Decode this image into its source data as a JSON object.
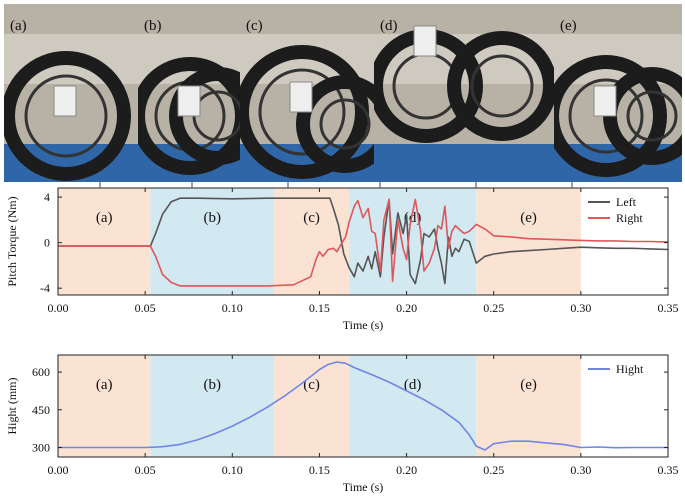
{
  "photos": {
    "labels": [
      "(a)",
      "(b)",
      "(c)",
      "(d)",
      "(e)"
    ],
    "floor_color": "#2f66a8",
    "wall_color": "#b8b2a6",
    "wheel_color": "#1c1c1c"
  },
  "colors": {
    "phase_orange": "#fbe3d4",
    "phase_blue": "#d3e9f1",
    "left": "#555555",
    "right": "#e0565a",
    "hight": "#6f85e8"
  },
  "chart_data": [
    {
      "type": "line",
      "ylabel": "Pitch Torque (Nm)",
      "xlabel": "Time (s)",
      "xlim": [
        0.0,
        0.35
      ],
      "ylim": [
        -4.6,
        4.8
      ],
      "xticks": [
        "0.00",
        "0.05",
        "0.10",
        "0.15",
        "0.20",
        "0.25",
        "0.30",
        "0.35"
      ],
      "yticks": [
        "4",
        "0",
        "-4"
      ],
      "ytick_values": [
        4,
        0,
        -4
      ],
      "legend_position": "top-right",
      "phases": [
        {
          "label": "(a)",
          "start": 0.0,
          "end": 0.053,
          "color": "orange"
        },
        {
          "label": "(b)",
          "start": 0.053,
          "end": 0.124,
          "color": "blue"
        },
        {
          "label": "(c)",
          "start": 0.124,
          "end": 0.167,
          "color": "orange"
        },
        {
          "label": "(d)",
          "start": 0.167,
          "end": 0.24,
          "color": "blue"
        },
        {
          "label": "(e)",
          "start": 0.24,
          "end": 0.3,
          "color": "orange"
        }
      ],
      "series": [
        {
          "name": "Left",
          "x": [
            0.0,
            0.053,
            0.056,
            0.06,
            0.065,
            0.07,
            0.08,
            0.1,
            0.12,
            0.14,
            0.156,
            0.158,
            0.161,
            0.164,
            0.167,
            0.17,
            0.172,
            0.175,
            0.178,
            0.18,
            0.182,
            0.185,
            0.187,
            0.19,
            0.192,
            0.195,
            0.198,
            0.2,
            0.202,
            0.205,
            0.208,
            0.21,
            0.213,
            0.216,
            0.218,
            0.22,
            0.222,
            0.224,
            0.226,
            0.228,
            0.23,
            0.233,
            0.236,
            0.24,
            0.245,
            0.25,
            0.26,
            0.27,
            0.28,
            0.29,
            0.3,
            0.31,
            0.32,
            0.33,
            0.34,
            0.35
          ],
          "y": [
            -0.3,
            -0.3,
            0.8,
            2.5,
            3.6,
            3.9,
            3.9,
            3.85,
            3.9,
            3.9,
            3.9,
            3.0,
            1.5,
            -1.0,
            -2.2,
            -3.0,
            -1.8,
            -2.5,
            -1.2,
            -2.3,
            -0.8,
            -3.0,
            0.5,
            3.8,
            -1.0,
            2.6,
            0.8,
            2.4,
            -2.8,
            -3.6,
            -1.5,
            0.8,
            0.5,
            1.2,
            -0.5,
            -1.8,
            -3.6,
            0.5,
            -1.2,
            -0.5,
            -0.8,
            0.3,
            0.1,
            -1.8,
            -1.2,
            -1.0,
            -0.8,
            -0.7,
            -0.6,
            -0.5,
            -0.4,
            -0.45,
            -0.5,
            -0.5,
            -0.55,
            -0.6
          ]
        },
        {
          "name": "Right",
          "x": [
            0.0,
            0.053,
            0.056,
            0.06,
            0.065,
            0.07,
            0.08,
            0.1,
            0.12,
            0.135,
            0.145,
            0.148,
            0.15,
            0.152,
            0.155,
            0.158,
            0.16,
            0.163,
            0.165,
            0.167,
            0.17,
            0.172,
            0.175,
            0.178,
            0.18,
            0.182,
            0.185,
            0.187,
            0.19,
            0.192,
            0.195,
            0.198,
            0.2,
            0.202,
            0.205,
            0.208,
            0.21,
            0.213,
            0.216,
            0.218,
            0.22,
            0.222,
            0.224,
            0.226,
            0.228,
            0.23,
            0.233,
            0.236,
            0.24,
            0.245,
            0.25,
            0.26,
            0.27,
            0.28,
            0.29,
            0.3,
            0.31,
            0.32,
            0.33,
            0.34,
            0.35
          ],
          "y": [
            -0.3,
            -0.3,
            -1.2,
            -2.8,
            -3.5,
            -3.8,
            -3.8,
            -3.8,
            -3.8,
            -3.7,
            -3.0,
            -1.5,
            -0.8,
            -1.2,
            -0.6,
            -0.5,
            -0.8,
            0.0,
            0.5,
            1.8,
            3.2,
            3.7,
            2.2,
            3.0,
            1.0,
            0.8,
            -2.5,
            2.0,
            3.8,
            -3.4,
            2.0,
            -0.5,
            -1.5,
            1.6,
            3.8,
            1.0,
            -2.5,
            -1.8,
            -0.5,
            1.5,
            1.2,
            3.2,
            -0.5,
            1.0,
            1.5,
            1.2,
            0.8,
            1.0,
            1.6,
            1.2,
            0.6,
            0.5,
            0.35,
            0.3,
            0.25,
            0.2,
            0.15,
            0.15,
            0.1,
            0.1,
            0.05
          ]
        }
      ]
    },
    {
      "type": "line",
      "ylabel": "Hight (mm)",
      "xlabel": "Time (s)",
      "xlim": [
        0.0,
        0.35
      ],
      "ylim": [
        262,
        668
      ],
      "xticks": [
        "0.00",
        "0.05",
        "0.10",
        "0.15",
        "0.20",
        "0.25",
        "0.30",
        "0.35"
      ],
      "yticks": [
        "600",
        "450",
        "300"
      ],
      "ytick_values": [
        600,
        450,
        300
      ],
      "legend_position": "top-right",
      "phases": [
        {
          "label": "(a)",
          "start": 0.0,
          "end": 0.053,
          "color": "orange"
        },
        {
          "label": "(b)",
          "start": 0.053,
          "end": 0.124,
          "color": "blue"
        },
        {
          "label": "(c)",
          "start": 0.124,
          "end": 0.167,
          "color": "orange"
        },
        {
          "label": "(d)",
          "start": 0.167,
          "end": 0.24,
          "color": "blue"
        },
        {
          "label": "(e)",
          "start": 0.24,
          "end": 0.3,
          "color": "orange"
        }
      ],
      "series": [
        {
          "name": "Hight",
          "x": [
            0.0,
            0.05,
            0.055,
            0.06,
            0.07,
            0.08,
            0.09,
            0.1,
            0.11,
            0.12,
            0.13,
            0.14,
            0.15,
            0.155,
            0.16,
            0.165,
            0.17,
            0.18,
            0.19,
            0.2,
            0.21,
            0.22,
            0.23,
            0.236,
            0.24,
            0.245,
            0.25,
            0.26,
            0.27,
            0.28,
            0.29,
            0.3,
            0.31,
            0.32,
            0.33,
            0.34,
            0.35
          ],
          "y": [
            300,
            300,
            301,
            303,
            312,
            330,
            355,
            385,
            420,
            460,
            505,
            555,
            610,
            630,
            640,
            635,
            618,
            590,
            560,
            525,
            490,
            450,
            400,
            350,
            305,
            290,
            315,
            325,
            325,
            318,
            312,
            300,
            302,
            299,
            300,
            300,
            300
          ]
        }
      ]
    }
  ]
}
